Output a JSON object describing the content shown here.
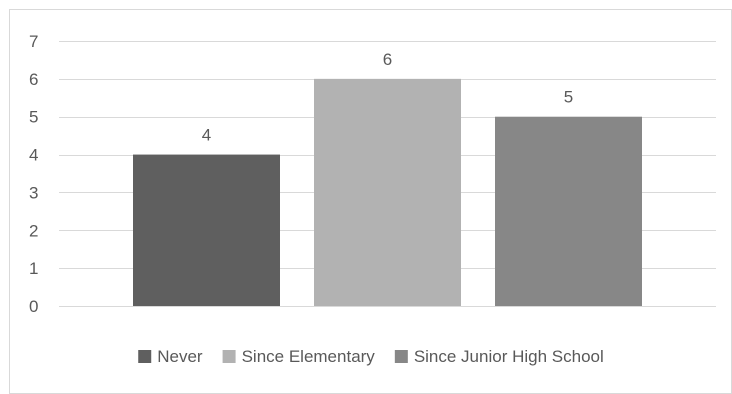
{
  "chart_data": {
    "type": "bar",
    "title": "",
    "xlabel": "",
    "ylabel": "",
    "ylim": [
      0,
      7
    ],
    "yticks": [
      0,
      1,
      2,
      3,
      4,
      5,
      6,
      7
    ],
    "grid": true,
    "legend_position": "bottom",
    "data_labels": true,
    "series": [
      {
        "name": "Never",
        "value": 4,
        "label": "4",
        "color": "#5f5f5f"
      },
      {
        "name": "Since Elementary",
        "value": 6,
        "label": "6",
        "color": "#b2b2b2"
      },
      {
        "name": "Since Junior High School",
        "value": 5,
        "label": "5",
        "color": "#878787"
      }
    ]
  }
}
